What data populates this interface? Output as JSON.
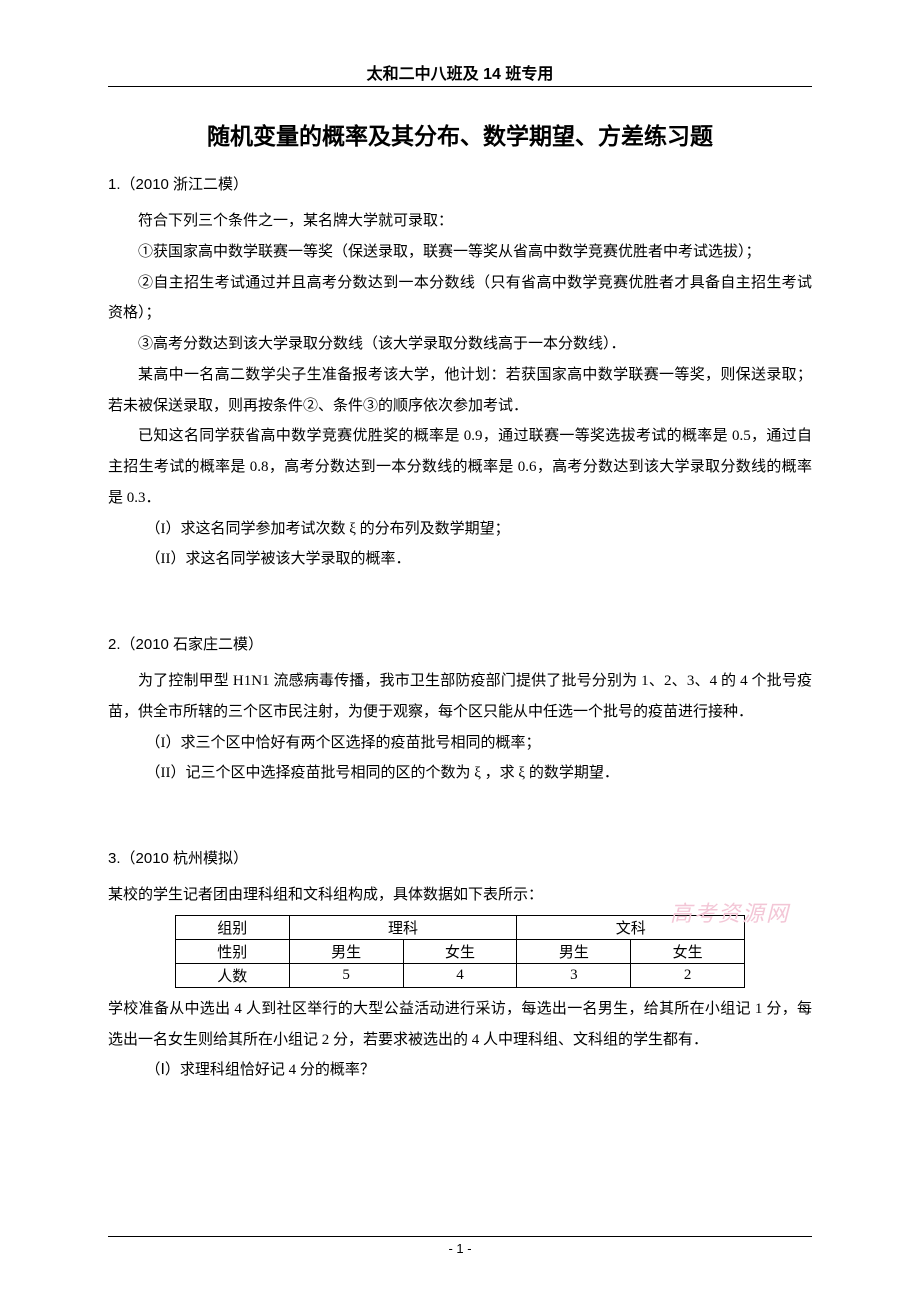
{
  "header": "太和二中八班及 14 班专用",
  "title": "随机变量的概率及其分布、数学期望、方差练习题",
  "q1": {
    "num": "1.（2010 浙江二模）",
    "p1": "符合下列三个条件之一，某名牌大学就可录取：",
    "p2": "①获国家高中数学联赛一等奖（保送录取，联赛一等奖从省高中数学竞赛优胜者中考试选拔）；",
    "p3": "②自主招生考试通过并且高考分数达到一本分数线（只有省高中数学竞赛优胜者才具备自主招生考试资格）；",
    "p4": "③高考分数达到该大学录取分数线（该大学录取分数线高于一本分数线）．",
    "p5": "某高中一名高二数学尖子生准备报考该大学，他计划：若获国家高中数学联赛一等奖，则保送录取；若未被保送录取，则再按条件②、条件③的顺序依次参加考试．",
    "p6": "已知这名同学获省高中数学竞赛优胜奖的概率是 0.9，通过联赛一等奖选拔考试的概率是 0.5，通过自主招生考试的概率是 0.8，高考分数达到一本分数线的概率是 0.6，高考分数达到该大学录取分数线的概率是 0.3．",
    "s1": "（I）求这名同学参加考试次数 ξ 的分布列及数学期望；",
    "s2": "（II）求这名同学被该大学录取的概率．"
  },
  "q2": {
    "num": "2.（2010 石家庄二模）",
    "p1": "为了控制甲型 H1N1 流感病毒传播，我市卫生部防疫部门提供了批号分别为 1、2、3、4 的 4 个批号疫苗，供全市所辖的三个区市民注射，为便于观察，每个区只能从中任选一个批号的疫苗进行接种．",
    "s1": "（I）求三个区中恰好有两个区选择的疫苗批号相同的概率；",
    "s2": "（II）记三个区中选择疫苗批号相同的区的个数为 ξ ，求 ξ 的数学期望．"
  },
  "q3": {
    "num": "3.（2010 杭州模拟）",
    "p1": "某校的学生记者团由理科组和文科组构成，具体数据如下表所示：",
    "table": {
      "r1": [
        "组别",
        "理科",
        "文科"
      ],
      "r2": [
        "性别",
        "男生",
        "女生",
        "男生",
        "女生"
      ],
      "r3": [
        "人数",
        "5",
        "4",
        "3",
        "2"
      ]
    },
    "p2": "学校准备从中选出 4 人到社区举行的大型公益活动进行采访，每选出一名男生，给其所在小组记 1 分，每选出一名女生则给其所在小组记 2 分，若要求被选出的 4 人中理科组、文科组的学生都有．",
    "s1": "（Ⅰ）求理科组恰好记 4 分的概率？"
  },
  "watermark": "高考资源网",
  "pageNum": "- 1 -"
}
